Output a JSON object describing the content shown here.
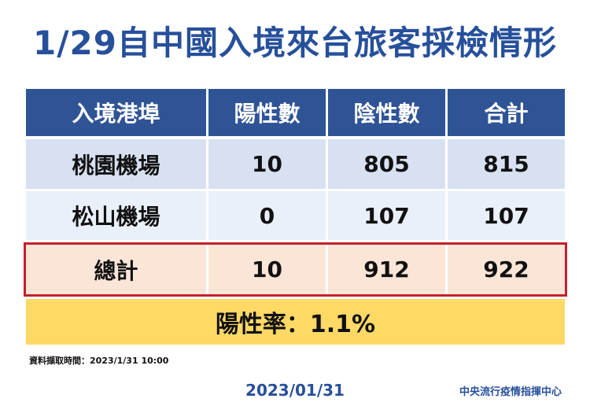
{
  "title": "1/29自中國入境來台旅客採檢情形",
  "table": {
    "headers": [
      "入境港埠",
      "陽性數",
      "陰性數",
      "合計"
    ],
    "rows": [
      [
        "桃園機場",
        "10",
        "805",
        "815"
      ],
      [
        "松山機場",
        "0",
        "107",
        "107"
      ]
    ],
    "total": [
      "總計",
      "10",
      "912",
      "922"
    ]
  },
  "positive_rate": "陽性率：1.1%",
  "data_time_note": "資料擷取時間：2023/1/31 10:00",
  "date": "2023/01/31",
  "organization": "中央流行疫情指揮中心",
  "colors": {
    "title": "#27509b",
    "header_bg": "#2f5496",
    "row1_bg": "#d8e1f2",
    "row2_bg": "#eaf0fa",
    "total_bg": "#fbe5d7",
    "total_border": "#c3202d",
    "rate_bg": "#ffd966"
  }
}
